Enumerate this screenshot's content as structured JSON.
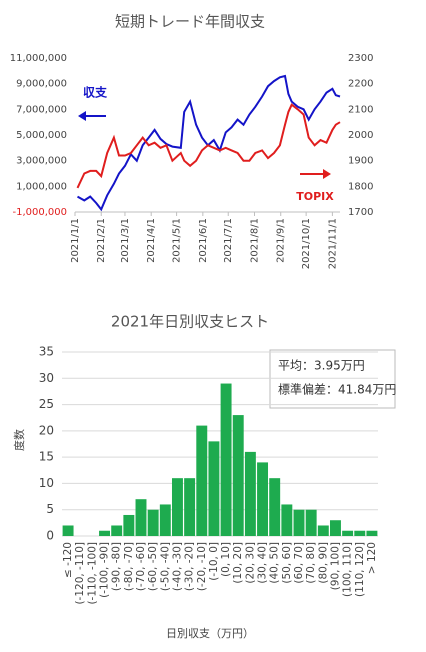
{
  "chart_data": [
    {
      "type": "line",
      "title": "短期トレード年間収支",
      "x": [
        "2021/1/4",
        "2021/1/12",
        "2021/1/19",
        "2021/1/26",
        "2021/2/1",
        "2021/2/8",
        "2021/2/16",
        "2021/2/22",
        "2021/3/1",
        "2021/3/8",
        "2021/3/15",
        "2021/3/22",
        "2021/3/29",
        "2021/4/5",
        "2021/4/12",
        "2021/4/19",
        "2021/4/26",
        "2021/5/6",
        "2021/5/10",
        "2021/5/17",
        "2021/5/24",
        "2021/5/31",
        "2021/6/7",
        "2021/6/14",
        "2021/6/21",
        "2021/6/28",
        "2021/7/5",
        "2021/7/12",
        "2021/7/19",
        "2021/7/26",
        "2021/8/2",
        "2021/8/10",
        "2021/8/17",
        "2021/8/24",
        "2021/8/31",
        "2021/9/6",
        "2021/9/10",
        "2021/9/14",
        "2021/9/21",
        "2021/9/28",
        "2021/10/4",
        "2021/10/11",
        "2021/10/18",
        "2021/10/25",
        "2021/11/1",
        "2021/11/5",
        "2021/11/10"
      ],
      "series": [
        {
          "name": "収支",
          "color": "#1414c8",
          "axis": "y",
          "values": [
            200000,
            -100000,
            200000,
            -300000,
            -800000,
            300000,
            1200000,
            2000000,
            2600000,
            3500000,
            3000000,
            4200000,
            4800000,
            5400000,
            4700000,
            4300000,
            4100000,
            4000000,
            6800000,
            7600000,
            5800000,
            4800000,
            4200000,
            4600000,
            3800000,
            5200000,
            5600000,
            6200000,
            5800000,
            6600000,
            7200000,
            8000000,
            8800000,
            9200000,
            9500000,
            9600000,
            8200000,
            7600000,
            7200000,
            7000000,
            6200000,
            7000000,
            7600000,
            8300000,
            8600000,
            8100000,
            8000000
          ]
        },
        {
          "name": "TOPIX",
          "color": "#e01e1e",
          "axis": "y2",
          "values": [
            1794,
            1850,
            1860,
            1860,
            1840,
            1930,
            1990,
            1920,
            1920,
            1930,
            1960,
            1990,
            1960,
            1970,
            1950,
            1960,
            1900,
            1930,
            1900,
            1880,
            1900,
            1940,
            1960,
            1950,
            1940,
            1950,
            1940,
            1930,
            1900,
            1900,
            1930,
            1940,
            1910,
            1930,
            1960,
            2040,
            2090,
            2118,
            2100,
            2080,
            1990,
            1960,
            1980,
            1970,
            2020,
            2040,
            2050
          ]
        }
      ],
      "xlim": [
        "2021/1/1",
        "2021/11/10"
      ],
      "xticks": [
        "2021/1/1",
        "2021/2/1",
        "2021/3/1",
        "2021/4/1",
        "2021/5/1",
        "2021/6/1",
        "2021/7/1",
        "2021/8/1",
        "2021/9/1",
        "2021/10/1",
        "2021/11/1"
      ],
      "ylim": [
        -1000000,
        11000000
      ],
      "yticks": [
        {
          "value": -1000000,
          "label": "-1,000,000"
        },
        {
          "value": 1000000,
          "label": "1,000,000"
        },
        {
          "value": 3000000,
          "label": "3,000,000"
        },
        {
          "value": 5000000,
          "label": "5,000,000"
        },
        {
          "value": 7000000,
          "label": "7,000,000"
        },
        {
          "value": 9000000,
          "label": "9,000,000"
        },
        {
          "value": 11000000,
          "label": "11,000,000"
        }
      ],
      "y2lim": [
        1700,
        2300
      ],
      "y2ticks": [
        1700,
        1800,
        1900,
        2000,
        2100,
        2200,
        2300
      ],
      "grid": false
    },
    {
      "type": "bar",
      "title": "2021年日別収支ヒスト",
      "categories": [
        "≤ -120",
        "(-120, -110]",
        "(-110, -100]",
        "(-100, -90]",
        "(-90, -80]",
        "(-80, -70]",
        "(-70, -60]",
        "(-60, -50]",
        "(-50, -40]",
        "(-40, -30]",
        "(-30, -20]",
        "(-20, -10]",
        "(-10, 0]",
        "(0, 10]",
        "(10, 20]",
        "(20, 30]",
        "(30, 40]",
        "(40, 50]",
        "(50, 60]",
        "(60, 70]",
        "(70, 80]",
        "(80, 90]",
        "(90, 100]",
        "(100, 110]",
        "(110, 120]",
        "> 120"
      ],
      "values": [
        2,
        0,
        0,
        1,
        2,
        4,
        7,
        5,
        6,
        11,
        11,
        21,
        18,
        29,
        23,
        16,
        14,
        11,
        6,
        5,
        5,
        2,
        3,
        1,
        1,
        1
      ],
      "color": "#1eab4f",
      "ylim": [
        0,
        35
      ],
      "yticks": [
        0,
        5,
        10,
        15,
        20,
        25,
        30,
        35
      ],
      "grid": true,
      "xlabel": "日別収支（万円）",
      "ylabel": "度数",
      "annotations": [
        "平均：3.95万円",
        "標準偏差：41.84万円"
      ]
    }
  ]
}
